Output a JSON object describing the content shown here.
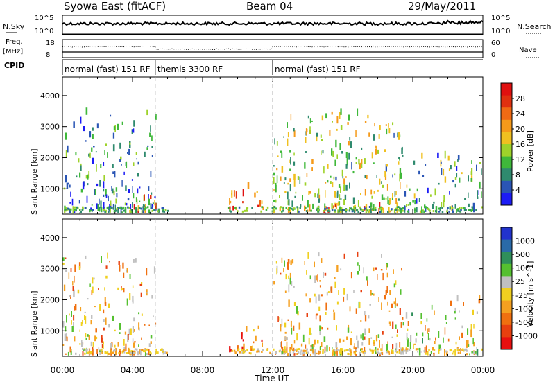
{
  "header": {
    "station": "Syowa East (fitACF)",
    "beam": "Beam 04",
    "date": "29/May/2011"
  },
  "summary_panels": {
    "nsky_label": "N.Sky",
    "nsky_tick_top": "10^5",
    "nsky_tick_bottom": "10^0",
    "nsearch_label": "N.Search",
    "nsearch_tick_top": "10^5",
    "nsearch_tick_bottom": "10^0",
    "freq_label": "Freq.",
    "freq_unit": "[MHz]",
    "freq_tick_top": "18",
    "freq_tick_bottom": "8",
    "nave_label": "Nave",
    "nave_tick_top": "60",
    "nave_tick_bottom": "0",
    "cpid_label": "CPID",
    "cpid_modes": [
      {
        "label": "normal (fast) 151 RF",
        "start_hour": 0,
        "end_hour": 5.3
      },
      {
        "label": "themis 3300 RF",
        "start_hour": 5.3,
        "end_hour": 12.0
      },
      {
        "label": "normal (fast) 151 RF",
        "start_hour": 12.0,
        "end_hour": 24.0
      }
    ]
  },
  "axes": {
    "xlabel": "Time UT",
    "x_ticks": [
      "00:00",
      "04:00",
      "08:00",
      "12:00",
      "16:00",
      "20:00",
      "00:00"
    ],
    "ylabel": "Slant Range [km]",
    "y_ticks": [
      "1000",
      "2000",
      "3000",
      "4000"
    ]
  },
  "colorbars": {
    "power": {
      "label": "Power [dB]",
      "ticks": [
        "4",
        "8",
        "12",
        "16",
        "20",
        "24",
        "28"
      ],
      "colors": [
        "#1c1cf5",
        "#2a55b5",
        "#2f8a6e",
        "#3fb83a",
        "#9ed22a",
        "#f0c020",
        "#f59a1a",
        "#f06a14",
        "#e03010",
        "#e01010"
      ]
    },
    "velocity": {
      "label": "Velocity [m s^-1]",
      "ticks": [
        "1000",
        "500",
        "100",
        "25",
        "-25",
        "-100",
        "-500",
        "-1000"
      ],
      "colors": [
        "#2233cc",
        "#2a6aa8",
        "#2f8f5a",
        "#55c030",
        "#c0c0c0",
        "#f0d020",
        "#f5a020",
        "#f07010",
        "#e84010",
        "#e81010"
      ]
    },
    "ground_scatter_color": "#808080"
  },
  "chart_data": [
    {
      "type": "heatmap",
      "title": "",
      "xlabel": "Time UT",
      "ylabel": "Slant Range [km]",
      "xlim": [
        0,
        24
      ],
      "ylim": [
        180,
        4600
      ],
      "colorbar_label": "Power [dB]",
      "colorbar_range": [
        0,
        32
      ],
      "mode_boundaries_hours": [
        5.3,
        12.0
      ],
      "scatter_regions": [
        {
          "t_start": 0.0,
          "t_end": 5.3,
          "range_start_km": 200,
          "range_end_km": 3400,
          "dominant_value": 8,
          "note": "dense blue-green scatter below 1400 km"
        },
        {
          "t_start": 3.5,
          "t_end": 5.3,
          "range_start_km": 200,
          "range_end_km": 700,
          "dominant_value": 24
        },
        {
          "t_start": 9.5,
          "t_end": 11.5,
          "range_start_km": 300,
          "range_end_km": 1100,
          "dominant_value": 24
        },
        {
          "t_start": 12.0,
          "t_end": 19.5,
          "range_start_km": 200,
          "range_end_km": 3400,
          "dominant_value": 14
        },
        {
          "t_start": 14.5,
          "t_end": 18.5,
          "range_start_km": 200,
          "range_end_km": 500,
          "dominant_value": 26
        },
        {
          "t_start": 19.5,
          "t_end": 23.9,
          "range_start_km": 200,
          "range_end_km": 2000,
          "dominant_value": 10
        }
      ]
    },
    {
      "type": "heatmap",
      "title": "",
      "xlabel": "Time UT",
      "ylabel": "Slant Range [km]",
      "xlim": [
        0,
        24
      ],
      "ylim": [
        180,
        4600
      ],
      "colorbar_label": "Velocity [m s^-1]",
      "colorbar_range": [
        -1000,
        1000
      ],
      "mode_boundaries_hours": [
        5.3,
        12.0
      ],
      "scatter_regions": [
        {
          "t_start": 0.0,
          "t_end": 5.3,
          "range_start_km": 200,
          "range_end_km": 3400,
          "dominant_value": -200
        },
        {
          "t_start": 9.5,
          "t_end": 11.5,
          "range_start_km": 300,
          "range_end_km": 1100,
          "dominant_value": -600
        },
        {
          "t_start": 12.0,
          "t_end": 19.5,
          "range_start_km": 200,
          "range_end_km": 3400,
          "dominant_value": -150
        },
        {
          "t_start": 19.5,
          "t_end": 23.9,
          "range_start_km": 200,
          "range_end_km": 2000,
          "dominant_value": -50
        }
      ]
    }
  ]
}
